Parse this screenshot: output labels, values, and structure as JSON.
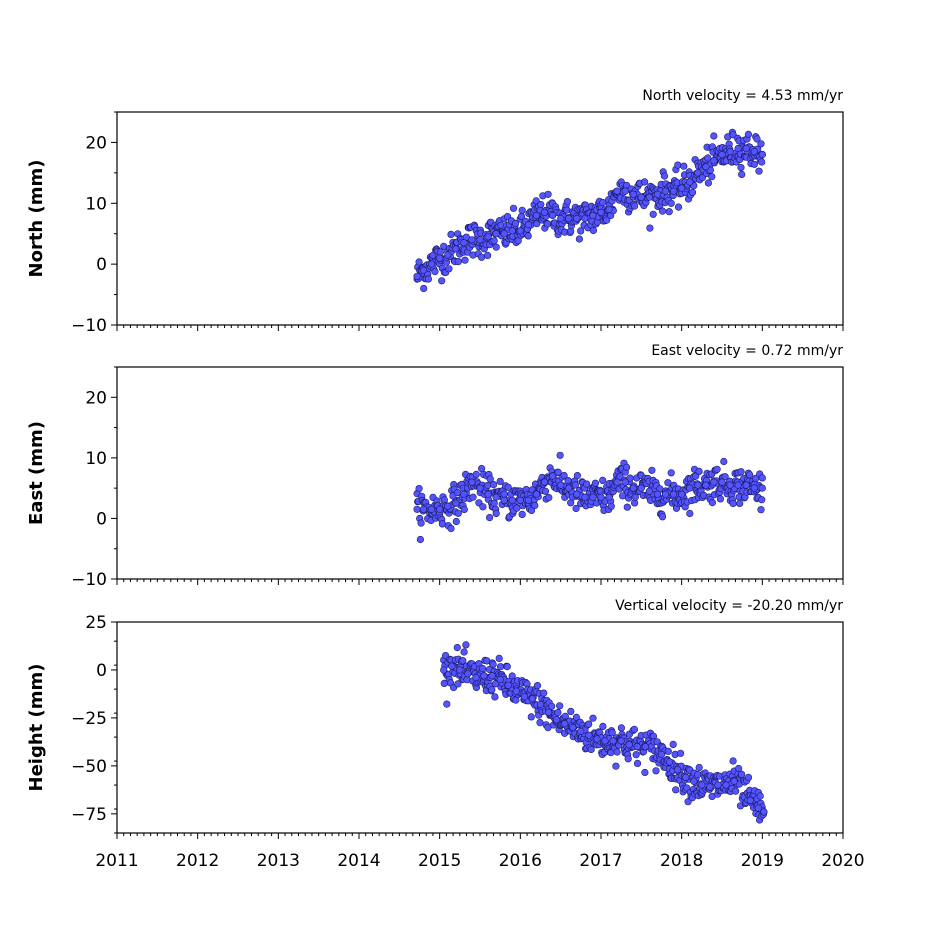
{
  "colors": {
    "marker_fill": "#5555ff",
    "marker_edge": "#1a1a66",
    "axes": "#000000"
  },
  "chart_data": [
    {
      "type": "scatter",
      "title": "North velocity = 4.53 mm/yr",
      "ylabel": "North (mm)",
      "xlim": [
        2011,
        2020
      ],
      "ylim": [
        -10,
        25
      ],
      "yticks": [
        20,
        10,
        0,
        -10
      ],
      "ytick_labels": [
        "20",
        "10",
        "0",
        "−10"
      ],
      "series": [
        {
          "x": [
            2014.72,
            2014.8,
            2014.9,
            2015.0,
            2015.1,
            2015.2,
            2015.3,
            2015.4,
            2015.5,
            2015.6,
            2015.7,
            2015.8,
            2015.9,
            2016.0,
            2016.1,
            2016.2,
            2016.3,
            2016.4,
            2016.5,
            2016.6,
            2016.7,
            2016.8,
            2016.9,
            2017.0,
            2017.1,
            2017.2,
            2017.3,
            2017.4,
            2017.5,
            2017.6,
            2017.7,
            2017.8,
            2017.9,
            2018.0,
            2018.1,
            2018.2,
            2018.3,
            2018.4,
            2018.5,
            2018.6,
            2018.7,
            2018.8,
            2018.9,
            2019.0
          ],
          "y": [
            -2.0,
            -1.0,
            0.0,
            1.0,
            1.5,
            2.5,
            3.5,
            4.0,
            4.0,
            4.5,
            5.0,
            5.0,
            5.5,
            5.5,
            6.5,
            8.0,
            8.5,
            8.0,
            7.5,
            7.5,
            7.5,
            7.5,
            8.0,
            8.5,
            9.0,
            12.0,
            12.0,
            11.5,
            11.0,
            11.0,
            11.5,
            12.0,
            12.0,
            12.5,
            13.5,
            15.0,
            16.0,
            17.0,
            18.0,
            18.5,
            19.0,
            19.0,
            18.5,
            18.0
          ]
        }
      ]
    },
    {
      "type": "scatter",
      "title": "East velocity = 0.72 mm/yr",
      "ylabel": "East (mm)",
      "xlim": [
        2011,
        2020
      ],
      "ylim": [
        -10,
        25
      ],
      "yticks": [
        20,
        10,
        0,
        -10
      ],
      "ytick_labels": [
        "20",
        "10",
        "0",
        "−10"
      ],
      "series": [
        {
          "x": [
            2014.72,
            2014.8,
            2014.9,
            2015.0,
            2015.1,
            2015.2,
            2015.3,
            2015.4,
            2015.5,
            2015.6,
            2015.7,
            2015.8,
            2015.9,
            2016.0,
            2016.1,
            2016.2,
            2016.3,
            2016.4,
            2016.5,
            2016.6,
            2016.7,
            2016.8,
            2016.9,
            2017.0,
            2017.1,
            2017.2,
            2017.3,
            2017.4,
            2017.5,
            2017.6,
            2017.7,
            2017.8,
            2017.9,
            2018.0,
            2018.1,
            2018.2,
            2018.3,
            2018.4,
            2018.5,
            2018.6,
            2018.7,
            2018.8,
            2018.9,
            2019.0
          ],
          "y": [
            1.5,
            1.5,
            1.5,
            1.5,
            2.0,
            2.5,
            4.0,
            6.0,
            5.0,
            4.0,
            3.5,
            3.0,
            3.0,
            3.0,
            3.0,
            4.0,
            6.0,
            7.0,
            5.5,
            5.0,
            4.0,
            3.5,
            3.5,
            3.5,
            3.5,
            6.0,
            6.0,
            5.0,
            5.0,
            4.5,
            4.0,
            4.0,
            4.0,
            4.0,
            5.0,
            5.5,
            5.5,
            6.0,
            6.0,
            5.5,
            5.5,
            5.5,
            5.0,
            5.0
          ]
        }
      ]
    },
    {
      "type": "scatter",
      "title": "Vertical velocity = -20.20 mm/yr",
      "ylabel": "Height (mm)",
      "xlim": [
        2011,
        2020
      ],
      "ylim": [
        -85,
        25
      ],
      "yticks": [
        25,
        0,
        -25,
        -50,
        -75
      ],
      "ytick_labels": [
        "25",
        "0",
        "−25",
        "−50",
        "−75"
      ],
      "xticks": [
        2011,
        2012,
        2013,
        2014,
        2015,
        2016,
        2017,
        2018,
        2019,
        2020
      ],
      "xtick_labels": [
        "2011",
        "2012",
        "2013",
        "2014",
        "2015",
        "2016",
        "2017",
        "2018",
        "2019",
        "2020"
      ],
      "series": [
        {
          "x": [
            2015.05,
            2015.15,
            2015.25,
            2015.35,
            2015.45,
            2015.55,
            2015.65,
            2015.75,
            2015.85,
            2015.95,
            2016.05,
            2016.15,
            2016.25,
            2016.35,
            2016.45,
            2016.55,
            2016.65,
            2016.75,
            2016.85,
            2016.95,
            2017.05,
            2017.15,
            2017.25,
            2017.35,
            2017.45,
            2017.55,
            2017.75,
            2017.85,
            2017.95,
            2018.05,
            2018.15,
            2018.25,
            2018.35,
            2018.45,
            2018.55,
            2018.65,
            2018.85,
            2018.95,
            2019.02
          ],
          "y": [
            0,
            2,
            0,
            -2,
            -4,
            -3,
            -3,
            -5,
            -8,
            -11,
            -14,
            -15,
            -18,
            -22,
            -26,
            -28,
            -30,
            -32,
            -34,
            -36,
            -37,
            -37,
            -37,
            -39,
            -40,
            -40,
            -44,
            -48,
            -52,
            -56,
            -58,
            -60,
            -61,
            -60,
            -60,
            -58,
            -68,
            -72,
            -74
          ]
        }
      ]
    }
  ]
}
